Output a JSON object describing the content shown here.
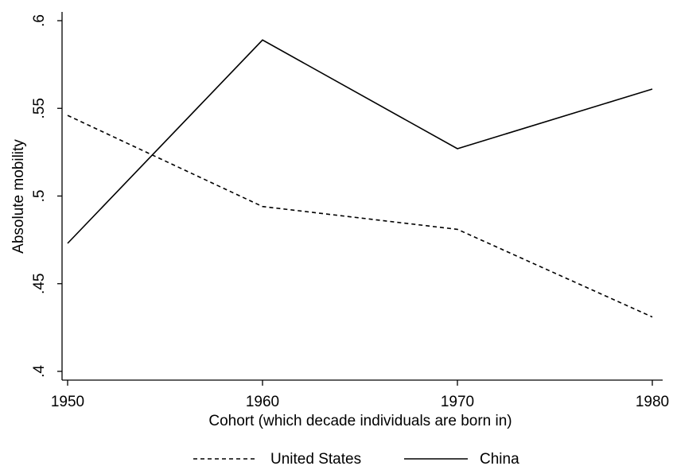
{
  "chart_data": {
    "type": "line",
    "title": "",
    "xlabel": "Cohort (which decade individuals are born in)",
    "ylabel": "Absolute mobility",
    "x": [
      1950,
      1960,
      1970,
      1980
    ],
    "x_tick_labels": [
      "1950",
      "1960",
      "1970",
      "1980"
    ],
    "y_tick_values": [
      0.4,
      0.45,
      0.5,
      0.55,
      0.6
    ],
    "y_tick_labels": [
      ".4",
      ".45",
      ".5",
      ".55",
      ".6"
    ],
    "xlim": [
      1950,
      1980
    ],
    "ylim": [
      0.4,
      0.6
    ],
    "grid": false,
    "legend_position": "bottom",
    "series": [
      {
        "name": "United States",
        "values": [
          0.546,
          0.494,
          0.481,
          0.431
        ],
        "dash": "dashed",
        "color": "#000000"
      },
      {
        "name": "China",
        "values": [
          0.473,
          0.589,
          0.527,
          0.561
        ],
        "dash": "solid",
        "color": "#000000"
      }
    ]
  }
}
